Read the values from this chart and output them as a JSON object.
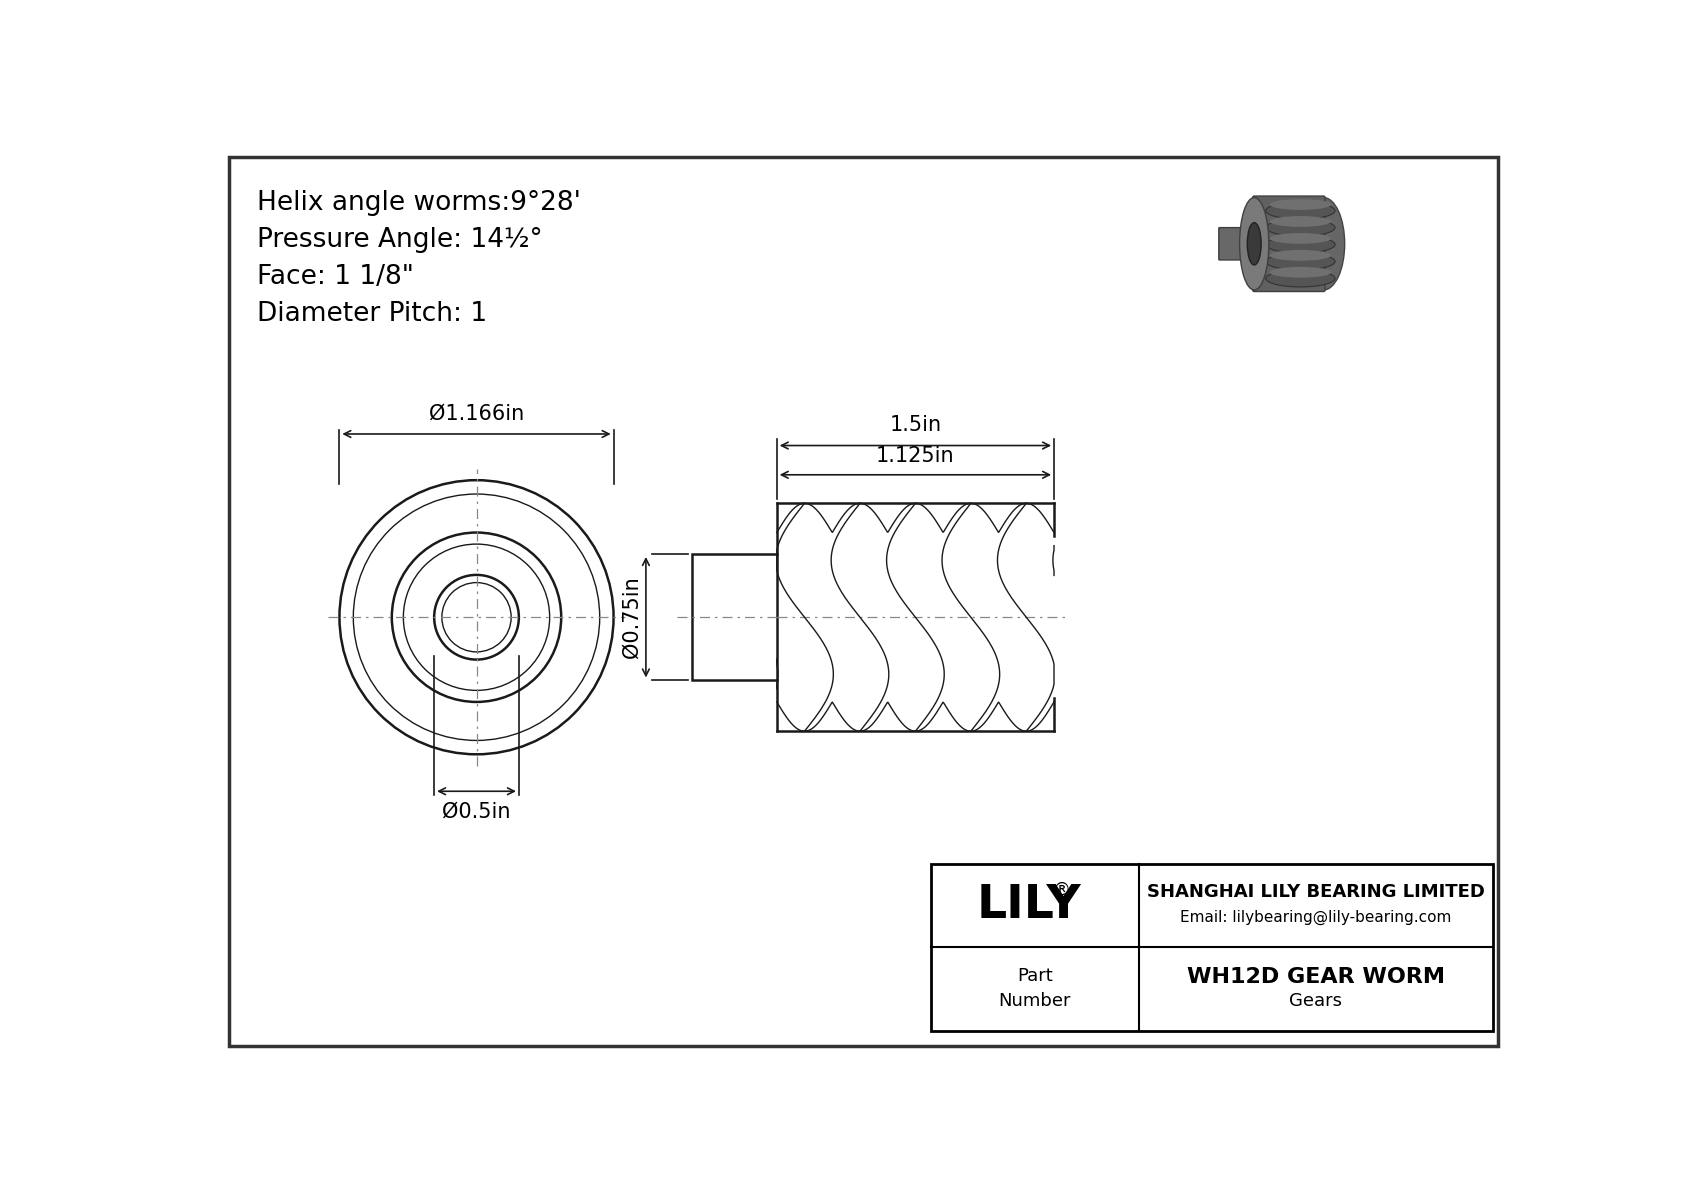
{
  "bg_color": "#ffffff",
  "line_color": "#1a1a1a",
  "title_lines": [
    "Helix angle worms:9°28'",
    "Pressure Angle: 14½°",
    "Face: 1 1/8\"",
    "Diameter Pitch: 1"
  ],
  "dim_outer": "Ø1.166in",
  "dim_inner": "Ø0.5in",
  "dim_shaft": "Ø0.75in",
  "dim_face": "1.125in",
  "dim_total": "1.5in",
  "company_name": "SHANGHAI LILY BEARING LIMITED",
  "company_email": "Email: lilybearing@lily-bearing.com",
  "part_number_label": "Part\nNumber",
  "part_number_value": "WH12D GEAR WORM",
  "part_category": "Gears",
  "brand": "LILY",
  "brand_reg": "®"
}
